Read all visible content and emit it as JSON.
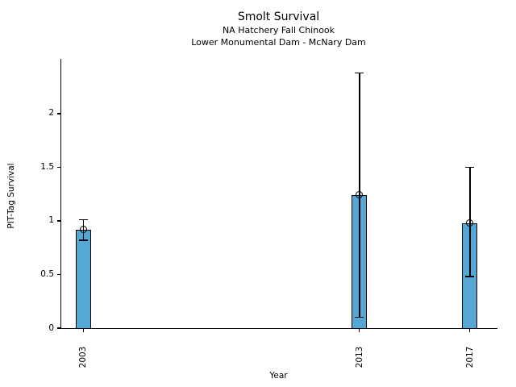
{
  "chart_data": {
    "type": "bar",
    "title": "Smolt Survival",
    "subtitles": [
      "NA Hatchery Fall Chinook",
      "Lower Monumental Dam - McNary Dam"
    ],
    "xlabel": "Year",
    "ylabel": "PIT-Tag Survival",
    "categories": [
      2003,
      2013,
      2017
    ],
    "category_labels": [
      "2003",
      "2013",
      "2017"
    ],
    "values": [
      0.92,
      1.24,
      0.98
    ],
    "error_low": [
      0.82,
      0.1,
      0.48
    ],
    "error_high": [
      1.01,
      2.38,
      1.5
    ],
    "marker": "open-circle",
    "bar_color": "#56a8d4",
    "bar_edge_color": "#000000",
    "error_color": "#000000",
    "xlim": [
      2002.2,
      2018.0
    ],
    "ylim": [
      0,
      2.51
    ],
    "yticks": [
      0,
      0.5,
      1,
      1.5,
      2
    ],
    "ytick_labels": [
      "0",
      "0.5",
      "1",
      "1.5",
      "2"
    ],
    "grid": false,
    "legend": "none"
  }
}
